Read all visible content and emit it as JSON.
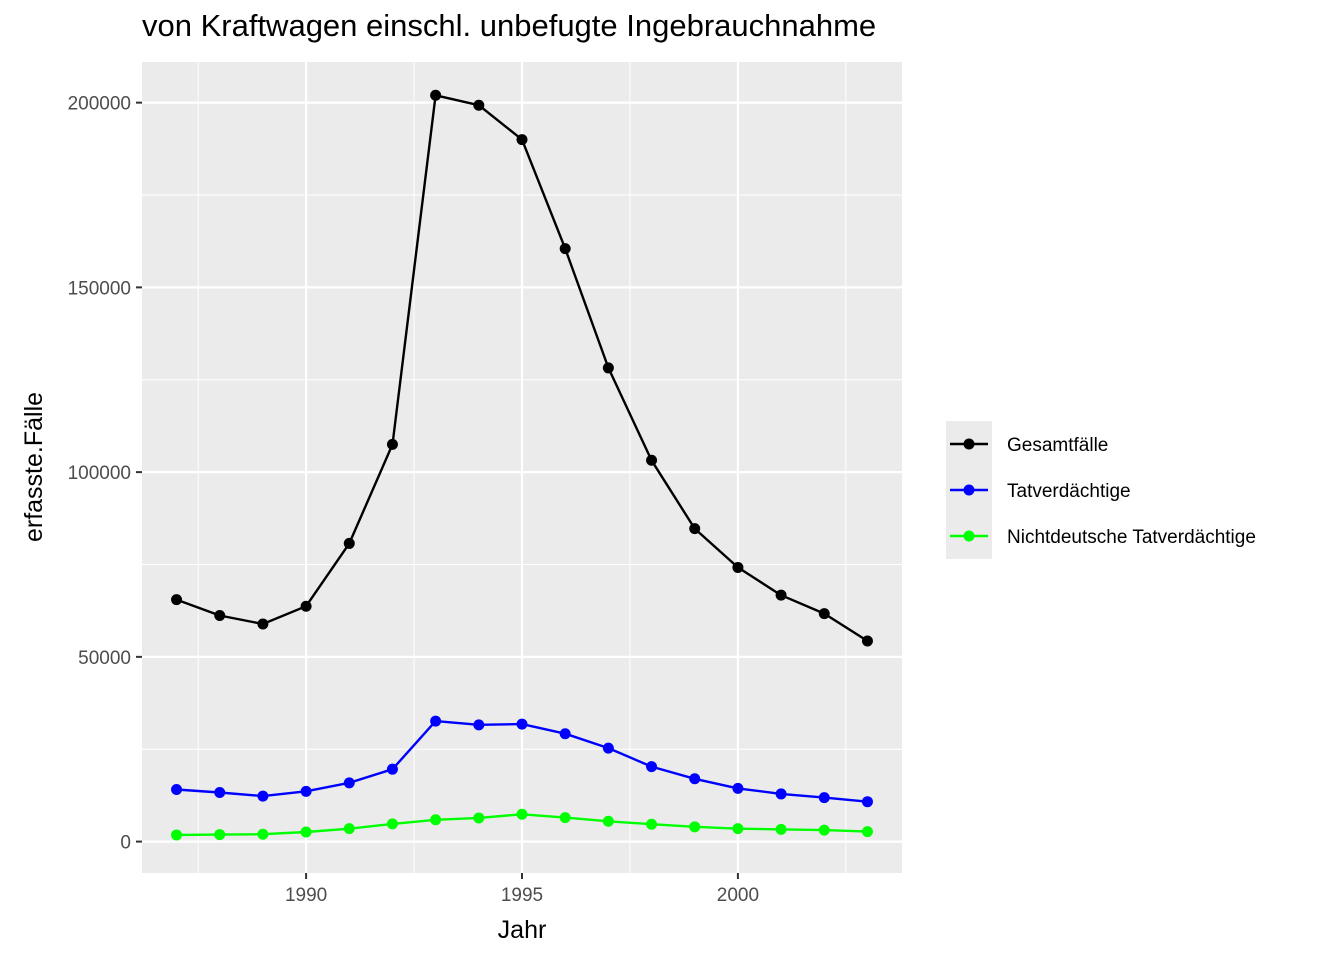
{
  "chart_data": {
    "type": "line",
    "title": "von Kraftwagen einschl. unbefugte Ingebrauchnahme",
    "xlabel": "Jahr",
    "ylabel": "erfasste.Fälle",
    "x": [
      1987,
      1988,
      1989,
      1990,
      1991,
      1992,
      1993,
      1994,
      1995,
      1996,
      1997,
      1998,
      1999,
      2000,
      2001,
      2002,
      2003
    ],
    "xlim": [
      1986.2,
      2003.8
    ],
    "ylim": [
      -8500,
      211000
    ],
    "x_ticks": [
      1990,
      1995,
      2000
    ],
    "x_tick_labels": [
      "1990",
      "1995",
      "2000"
    ],
    "y_ticks": [
      0,
      50000,
      100000,
      150000,
      200000
    ],
    "y_tick_labels": [
      "0",
      "50000",
      "100000",
      "150000",
      "200000"
    ],
    "grid": true,
    "legend_position": "right",
    "series": [
      {
        "name": "Gesamtfälle",
        "color": "#000000",
        "values": [
          65500,
          61200,
          58900,
          63700,
          80700,
          107500,
          202000,
          199300,
          190000,
          160500,
          128200,
          103200,
          84700,
          74200,
          66700,
          61700,
          54300
        ]
      },
      {
        "name": "Tatverdächtige",
        "color": "#0000ff",
        "values": [
          14100,
          13300,
          12300,
          13600,
          15900,
          19600,
          32600,
          31600,
          31800,
          29200,
          25300,
          20300,
          17000,
          14400,
          12900,
          11900,
          10800
        ]
      },
      {
        "name": "Nichtdeutsche Tatverdächtige",
        "color": "#00ff00",
        "values": [
          1800,
          1900,
          2000,
          2600,
          3500,
          4800,
          5900,
          6400,
          7400,
          6500,
          5500,
          4700,
          4000,
          3500,
          3300,
          3100,
          2700
        ]
      }
    ]
  }
}
